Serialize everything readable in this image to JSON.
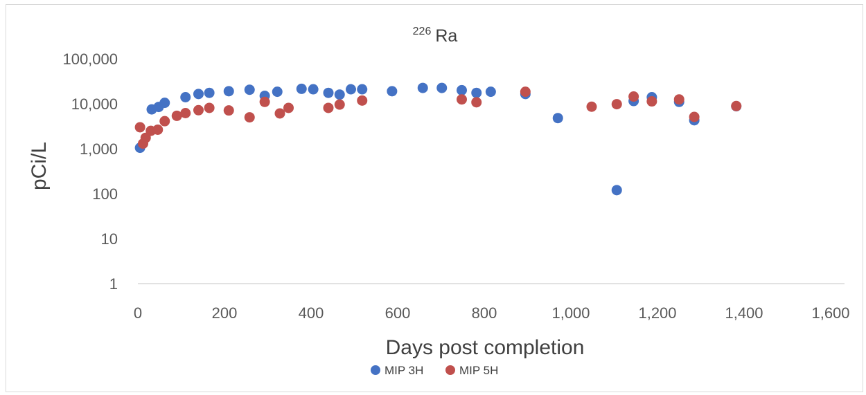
{
  "chart_data": {
    "type": "scatter",
    "title_sup": "226",
    "title_main": "Ra",
    "xlabel": "Days post completion",
    "ylabel": "pCi/L",
    "xlim": [
      0,
      1600
    ],
    "ylim": [
      1,
      100000
    ],
    "yscale": "log",
    "grid": false,
    "legend_position": "bottom",
    "x_tick_labels": [
      "0",
      "200",
      "400",
      "600",
      "800",
      "1,000",
      "1,200",
      "1,400",
      "1,600"
    ],
    "x_tick_values": [
      0,
      200,
      400,
      600,
      800,
      1000,
      1200,
      1400,
      1600
    ],
    "y_tick_labels": [
      "1",
      "10",
      "100",
      "1,000",
      "10,000",
      "100,000"
    ],
    "y_tick_values": [
      1,
      10,
      100,
      1000,
      10000,
      100000
    ],
    "series": [
      {
        "name": "MIP 3H",
        "color": "#4472c4",
        "points": [
          [
            5,
            1050
          ],
          [
            32,
            7500
          ],
          [
            48,
            8500
          ],
          [
            62,
            10500
          ],
          [
            110,
            14000
          ],
          [
            140,
            16500
          ],
          [
            165,
            17500
          ],
          [
            210,
            19000
          ],
          [
            258,
            20500
          ],
          [
            293,
            15000
          ],
          [
            322,
            18500
          ],
          [
            378,
            21500
          ],
          [
            405,
            21000
          ],
          [
            440,
            17500
          ],
          [
            466,
            16000
          ],
          [
            492,
            21000
          ],
          [
            518,
            21000
          ],
          [
            587,
            19000
          ],
          [
            658,
            22500
          ],
          [
            702,
            22500
          ],
          [
            748,
            20000
          ],
          [
            782,
            17500
          ],
          [
            815,
            18500
          ],
          [
            895,
            16500
          ],
          [
            970,
            4800
          ],
          [
            1106,
            120
          ],
          [
            1145,
            11500
          ],
          [
            1187,
            14000
          ],
          [
            1250,
            11000
          ],
          [
            1285,
            4300
          ],
          [
            1382,
            8800
          ]
        ]
      },
      {
        "name": "MIP 5H",
        "color": "#c0504d",
        "points": [
          [
            5,
            3000
          ],
          [
            12,
            1300
          ],
          [
            18,
            1750
          ],
          [
            30,
            2500
          ],
          [
            46,
            2650
          ],
          [
            62,
            4100
          ],
          [
            90,
            5400
          ],
          [
            110,
            6200
          ],
          [
            140,
            7200
          ],
          [
            165,
            8100
          ],
          [
            210,
            7100
          ],
          [
            258,
            5000
          ],
          [
            293,
            11000
          ],
          [
            328,
            6100
          ],
          [
            348,
            8100
          ],
          [
            440,
            8100
          ],
          [
            466,
            9600
          ],
          [
            518,
            11800
          ],
          [
            748,
            12500
          ],
          [
            782,
            10800
          ],
          [
            895,
            18500
          ],
          [
            1048,
            8600
          ],
          [
            1106,
            9800
          ],
          [
            1145,
            14500
          ],
          [
            1187,
            11300
          ],
          [
            1250,
            12500
          ],
          [
            1285,
            5100
          ],
          [
            1382,
            8900
          ]
        ]
      }
    ]
  }
}
